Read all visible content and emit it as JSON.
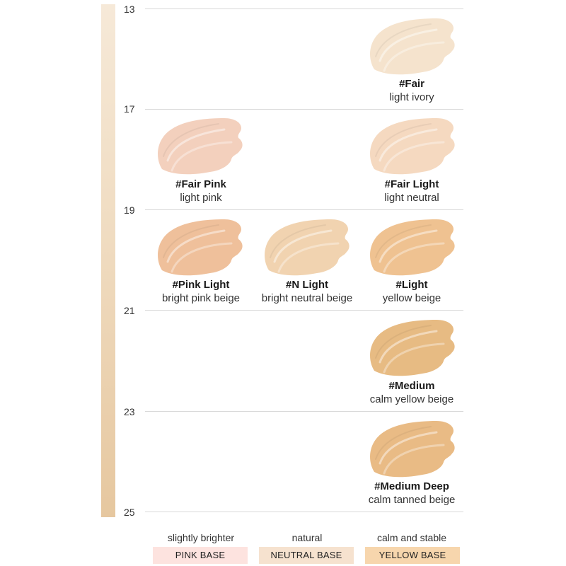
{
  "scale": {
    "ticks": [
      "13",
      "17",
      "19",
      "21",
      "23",
      "25"
    ],
    "bar_colors": {
      "top": "#f6e9d8",
      "middle": "#f0dcc1",
      "bottom": "#e6c79f"
    }
  },
  "shades": [
    {
      "name": "#Fair",
      "description": "light ivory",
      "level": "13",
      "base": "yellow",
      "color": "#f5e3cd"
    },
    {
      "name": "#Fair Pink",
      "description": "light pink",
      "level": "17",
      "base": "pink",
      "color": "#f3d0bd"
    },
    {
      "name": "#Fair Light",
      "description": "light neutral",
      "level": "17",
      "base": "yellow",
      "color": "#f5d9c0"
    },
    {
      "name": "#Pink Light",
      "description": "bright pink beige",
      "level": "19",
      "base": "pink",
      "color": "#efc09b"
    },
    {
      "name": "#N Light",
      "description": "bright neutral beige",
      "level": "19",
      "base": "neutral",
      "color": "#f1d3b0"
    },
    {
      "name": "#Light",
      "description": "yellow beige",
      "level": "19",
      "base": "yellow",
      "color": "#efc291"
    },
    {
      "name": "#Medium",
      "description": "calm yellow beige",
      "level": "21",
      "base": "yellow",
      "color": "#e7bb83"
    },
    {
      "name": "#Medium Deep",
      "description": "calm tanned beige",
      "level": "23",
      "base": "yellow",
      "color": "#e9bb85"
    }
  ],
  "columns": [
    {
      "caption": "slightly brighter",
      "badge": "PINK BASE",
      "badge_color": "#fde3df"
    },
    {
      "caption": "natural",
      "badge": "NEUTRAL BASE",
      "badge_color": "#f6e2cf"
    },
    {
      "caption": "calm and stable",
      "badge": "YELLOW BASE",
      "badge_color": "#f7d6ad"
    }
  ]
}
